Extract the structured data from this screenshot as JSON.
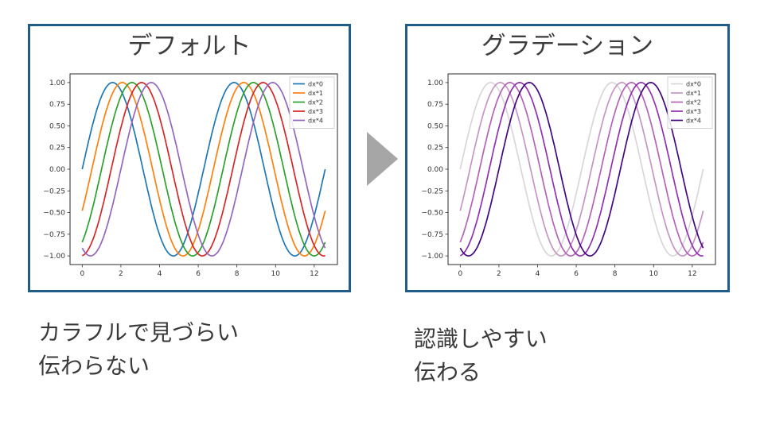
{
  "colors": {
    "panel_border": "#1f5c87",
    "arrow": "#a6a6a6",
    "title_text": "#3d3d3d",
    "caption_text": "#3a3a3a",
    "axis_text": "#333333",
    "plot_frame": "#2b2b2b"
  },
  "captions": [
    {
      "lines": [
        "カラフルで見づらい",
        "伝わらない"
      ]
    },
    {
      "lines": [
        "認識しやすい",
        "伝わる"
      ]
    }
  ],
  "chart_data": [
    {
      "type": "line",
      "title": "デフォルト",
      "function": "y = sin(x - phase_shift)",
      "x_range": [
        0,
        12.566
      ],
      "xlim": [
        -0.63,
        13.2
      ],
      "ylim": [
        -1.1,
        1.1
      ],
      "xticks": [
        0,
        2,
        4,
        6,
        8,
        10,
        12
      ],
      "yticks": [
        -1.0,
        -0.75,
        -0.5,
        -0.25,
        0.0,
        0.25,
        0.5,
        0.75,
        1.0
      ],
      "grid": false,
      "legend_position": "upper right",
      "series": [
        {
          "name": "dx*0",
          "phase_shift": 0.0,
          "color": "#1f77b4"
        },
        {
          "name": "dx*1",
          "phase_shift": 0.5,
          "color": "#ff7f0e"
        },
        {
          "name": "dx*2",
          "phase_shift": 1.0,
          "color": "#2ca02c"
        },
        {
          "name": "dx*3",
          "phase_shift": 1.5,
          "color": "#d62728"
        },
        {
          "name": "dx*4",
          "phase_shift": 2.0,
          "color": "#9467bd"
        }
      ]
    },
    {
      "type": "line",
      "title": "グラデーション",
      "function": "y = sin(x - phase_shift)",
      "x_range": [
        0,
        12.566
      ],
      "xlim": [
        -0.63,
        13.2
      ],
      "ylim": [
        -1.1,
        1.1
      ],
      "xticks": [
        0,
        2,
        4,
        6,
        8,
        10,
        12
      ],
      "yticks": [
        -1.0,
        -0.75,
        -0.5,
        -0.25,
        0.0,
        0.25,
        0.5,
        0.75,
        1.0
      ],
      "grid": false,
      "legend_position": "upper right",
      "series": [
        {
          "name": "dx*0",
          "phase_shift": 0.0,
          "color": "#d9d6da"
        },
        {
          "name": "dx*1",
          "phase_shift": 0.5,
          "color": "#c497c2"
        },
        {
          "name": "dx*2",
          "phase_shift": 1.0,
          "color": "#b463b8"
        },
        {
          "name": "dx*3",
          "phase_shift": 1.5,
          "color": "#9032ad"
        },
        {
          "name": "dx*4",
          "phase_shift": 2.0,
          "color": "#42097e"
        }
      ]
    }
  ]
}
